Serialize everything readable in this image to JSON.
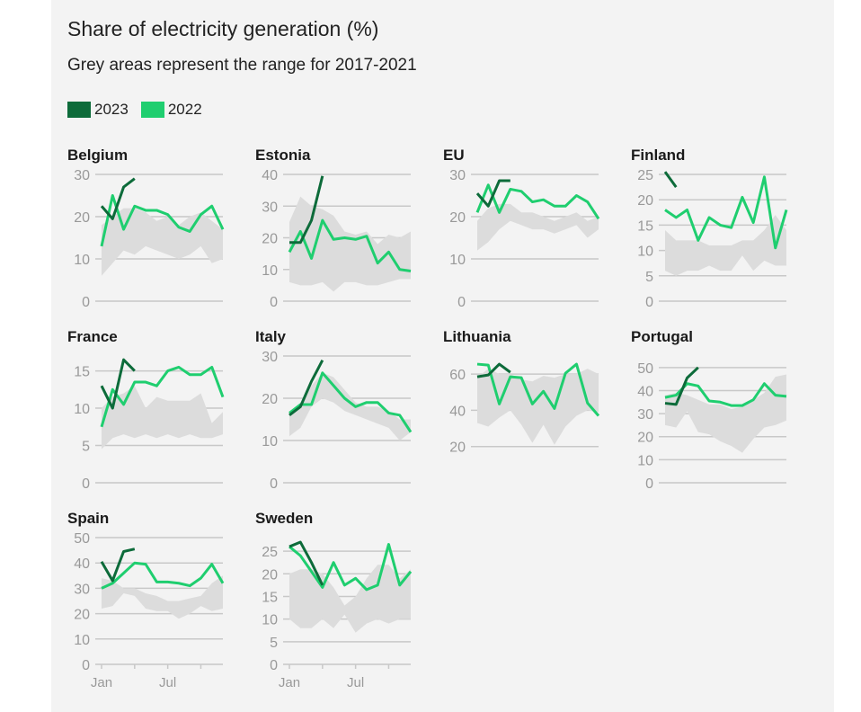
{
  "header": {
    "subtitle": "Share of electricity generation (%)",
    "note": "Grey areas represent the range for 2017-2021"
  },
  "legend": [
    {
      "label": "2023",
      "color": "#0d6b3a"
    },
    {
      "label": "2022",
      "color": "#1fce6f"
    }
  ],
  "colors": {
    "range": "#dcdcdc",
    "grid": "#c8c8c8",
    "y2023": "#0d6b3a",
    "y2022": "#1fce6f"
  },
  "chart_data": [
    {
      "type": "line",
      "title": "Belgium",
      "ylim": [
        0,
        30
      ],
      "yticks": [
        0,
        10,
        20,
        30
      ],
      "months": [
        1,
        2,
        3,
        4,
        5,
        6,
        7,
        8,
        9,
        10,
        11,
        12
      ],
      "series": [
        {
          "name": "2023",
          "values": [
            22.5,
            19.5,
            27,
            29
          ]
        },
        {
          "name": "2022",
          "values": [
            13,
            25,
            17,
            22.5,
            21.5,
            21.5,
            20.5,
            17.5,
            16.5,
            20.5,
            22.5,
            17
          ]
        }
      ],
      "range_low": [
        6,
        9,
        12,
        11,
        13,
        12,
        11,
        10,
        11,
        13,
        9,
        10
      ],
      "range_high": [
        18,
        20,
        22,
        22,
        21,
        19,
        20,
        18,
        20,
        21,
        19,
        17
      ]
    },
    {
      "type": "line",
      "title": "Estonia",
      "ylim": [
        0,
        40
      ],
      "yticks": [
        0,
        10,
        20,
        30,
        40
      ],
      "months": [
        1,
        2,
        3,
        4,
        5,
        6,
        7,
        8,
        9,
        10,
        11,
        12
      ],
      "series": [
        {
          "name": "2023",
          "values": [
            18.5,
            18.5,
            25.5,
            39.5
          ]
        },
        {
          "name": "2022",
          "values": [
            15.5,
            22,
            13.5,
            25.5,
            19.5,
            20,
            19.5,
            20.5,
            12,
            15.5,
            10,
            9.5
          ]
        }
      ],
      "range_low": [
        6,
        5,
        5,
        6,
        3,
        6,
        6,
        5,
        5,
        6,
        7,
        7
      ],
      "range_high": [
        25,
        33,
        30,
        29,
        27,
        22,
        21,
        22,
        18,
        21,
        20,
        22
      ]
    },
    {
      "type": "line",
      "title": "EU",
      "ylim": [
        0,
        30
      ],
      "yticks": [
        0,
        10,
        20,
        30
      ],
      "months": [
        1,
        2,
        3,
        4,
        5,
        6,
        7,
        8,
        9,
        10,
        11,
        12
      ],
      "series": [
        {
          "name": "2023",
          "values": [
            25.5,
            22.5,
            28.5,
            28.5
          ]
        },
        {
          "name": "2022",
          "values": [
            21,
            27.5,
            21,
            26.5,
            26,
            23.5,
            24,
            22.5,
            22.5,
            25,
            23.5,
            19.5
          ]
        }
      ],
      "range_low": [
        12,
        14,
        17,
        19,
        18,
        17,
        17,
        16,
        17,
        18,
        15,
        17
      ],
      "range_high": [
        19,
        22,
        23,
        23,
        21,
        21,
        20,
        19,
        20,
        21,
        19,
        20
      ]
    },
    {
      "type": "line",
      "title": "Finland",
      "ylim": [
        0,
        25
      ],
      "yticks": [
        0,
        5,
        10,
        15,
        20,
        25
      ],
      "months": [
        1,
        2,
        3,
        4,
        5,
        6,
        7,
        8,
        9,
        10,
        11,
        12
      ],
      "series": [
        {
          "name": "2023",
          "values": [
            25.5,
            22.5,
            null,
            null
          ]
        },
        {
          "name": "2022",
          "values": [
            18,
            16.5,
            18,
            12,
            16.5,
            15,
            14.5,
            20.5,
            15.5,
            24.5,
            10.5,
            18
          ]
        }
      ],
      "range_low": [
        6,
        5,
        6,
        6,
        7,
        6,
        6,
        9,
        6,
        8,
        7,
        7
      ],
      "range_high": [
        14,
        12,
        12,
        12,
        11,
        11,
        11,
        12,
        12,
        14,
        17,
        14
      ]
    },
    {
      "type": "line",
      "title": "France",
      "ylim": [
        0,
        17
      ],
      "yticks": [
        0,
        5,
        10,
        15
      ],
      "months": [
        1,
        2,
        3,
        4,
        5,
        6,
        7,
        8,
        9,
        10,
        11,
        12
      ],
      "series": [
        {
          "name": "2023",
          "values": [
            13,
            10,
            16.5,
            15
          ]
        },
        {
          "name": "2022",
          "values": [
            7.5,
            12.5,
            10.5,
            13.5,
            13.5,
            13,
            15,
            15.5,
            14.5,
            14.5,
            15.5,
            11.5
          ]
        }
      ],
      "range_low": [
        4.5,
        6,
        6.5,
        6,
        6.5,
        6,
        6.5,
        6,
        6.5,
        6,
        6,
        6.5
      ],
      "range_high": [
        10,
        11.5,
        12,
        13,
        10,
        11.5,
        11,
        11,
        11,
        12,
        8,
        9.5
      ]
    },
    {
      "type": "line",
      "title": "Italy",
      "ylim": [
        0,
        30
      ],
      "yticks": [
        0,
        10,
        20,
        30
      ],
      "months": [
        1,
        2,
        3,
        4,
        5,
        6,
        7,
        8,
        9,
        10,
        11,
        12
      ],
      "series": [
        {
          "name": "2023",
          "values": [
            16,
            18,
            24,
            29
          ]
        },
        {
          "name": "2022",
          "values": [
            16.5,
            18.5,
            18.5,
            26,
            23,
            20,
            18,
            19,
            19,
            16.5,
            16,
            12
          ]
        }
      ],
      "range_low": [
        11,
        13,
        18,
        20,
        19,
        17,
        16,
        15,
        14,
        13,
        10,
        12
      ],
      "range_high": [
        16,
        19,
        23,
        26,
        25,
        22,
        19,
        18,
        18,
        17,
        15,
        15
      ]
    },
    {
      "type": "line",
      "title": "Lithuania",
      "ylim": [
        0,
        70
      ],
      "yticks": [
        20,
        40,
        60
      ],
      "months": [
        1,
        2,
        3,
        4,
        5,
        6,
        7,
        8,
        9,
        10,
        11,
        12
      ],
      "series": [
        {
          "name": "2023",
          "values": [
            58.5,
            59.5,
            65.5,
            61
          ]
        },
        {
          "name": "2022",
          "values": [
            65.5,
            65,
            43.5,
            58.5,
            58,
            43.5,
            50.5,
            41,
            60.5,
            65.5,
            44,
            37
          ]
        }
      ],
      "range_low": [
        33,
        31,
        36,
        40,
        32,
        22,
        32,
        21,
        31,
        37,
        40,
        39
      ],
      "range_high": [
        58,
        63,
        60,
        60,
        57,
        56,
        59,
        58,
        60,
        60,
        63,
        60
      ]
    },
    {
      "type": "line",
      "title": "Portugal",
      "ylim": [
        0,
        55
      ],
      "yticks": [
        0,
        10,
        20,
        30,
        40,
        50
      ],
      "months": [
        1,
        2,
        3,
        4,
        5,
        6,
        7,
        8,
        9,
        10,
        11,
        12
      ],
      "series": [
        {
          "name": "2023",
          "values": [
            34.5,
            34,
            45.5,
            50
          ]
        },
        {
          "name": "2022",
          "values": [
            37,
            38,
            43,
            42,
            35.5,
            35,
            33.5,
            33.5,
            36,
            43,
            38,
            37.5
          ]
        }
      ],
      "range_low": [
        25,
        24,
        31,
        22,
        21,
        18,
        16,
        13,
        19,
        24,
        25,
        27
      ],
      "range_high": [
        38,
        39,
        38,
        36,
        34,
        34,
        32,
        33,
        36,
        39,
        46,
        47
      ]
    },
    {
      "type": "line",
      "title": "Spain",
      "ylim": [
        0,
        50
      ],
      "yticks": [
        0,
        10,
        20,
        30,
        40,
        50
      ],
      "months": [
        1,
        2,
        3,
        4,
        5,
        6,
        7,
        8,
        9,
        10,
        11,
        12
      ],
      "xticks": [
        {
          "month": 1,
          "label": "Jan"
        },
        {
          "month": 7,
          "label": "Jul"
        }
      ],
      "series": [
        {
          "name": "2023",
          "values": [
            40.5,
            33,
            44.5,
            45.5
          ]
        },
        {
          "name": "2022",
          "values": [
            30,
            32,
            36,
            40,
            39.5,
            32.5,
            32.5,
            32,
            31,
            34,
            39.5,
            32
          ]
        }
      ],
      "range_low": [
        22,
        23,
        28,
        27,
        22,
        21,
        21,
        18,
        20,
        23,
        21,
        22
      ],
      "range_high": [
        34,
        33,
        30,
        30,
        28,
        27,
        25,
        25,
        26,
        27,
        32,
        35
      ]
    },
    {
      "type": "line",
      "title": "Sweden",
      "ylim": [
        0,
        28
      ],
      "yticks": [
        0,
        5,
        10,
        15,
        20,
        25
      ],
      "months": [
        1,
        2,
        3,
        4,
        5,
        6,
        7,
        8,
        9,
        10,
        11,
        12
      ],
      "xticks": [
        {
          "month": 1,
          "label": "Jan"
        },
        {
          "month": 7,
          "label": "Jul"
        }
      ],
      "series": [
        {
          "name": "2023",
          "values": [
            26,
            27,
            22.5,
            17.5
          ]
        },
        {
          "name": "2022",
          "values": [
            26,
            24,
            20.5,
            17,
            22.5,
            17.5,
            19,
            16.5,
            17.5,
            26.5,
            17.5,
            20.5
          ]
        }
      ],
      "range_low": [
        10,
        8,
        8,
        10,
        8,
        11,
        7,
        9,
        10,
        9,
        10,
        10
      ],
      "range_high": [
        20,
        21,
        21,
        20,
        17,
        13,
        15,
        19,
        22,
        22,
        19,
        21
      ]
    }
  ]
}
